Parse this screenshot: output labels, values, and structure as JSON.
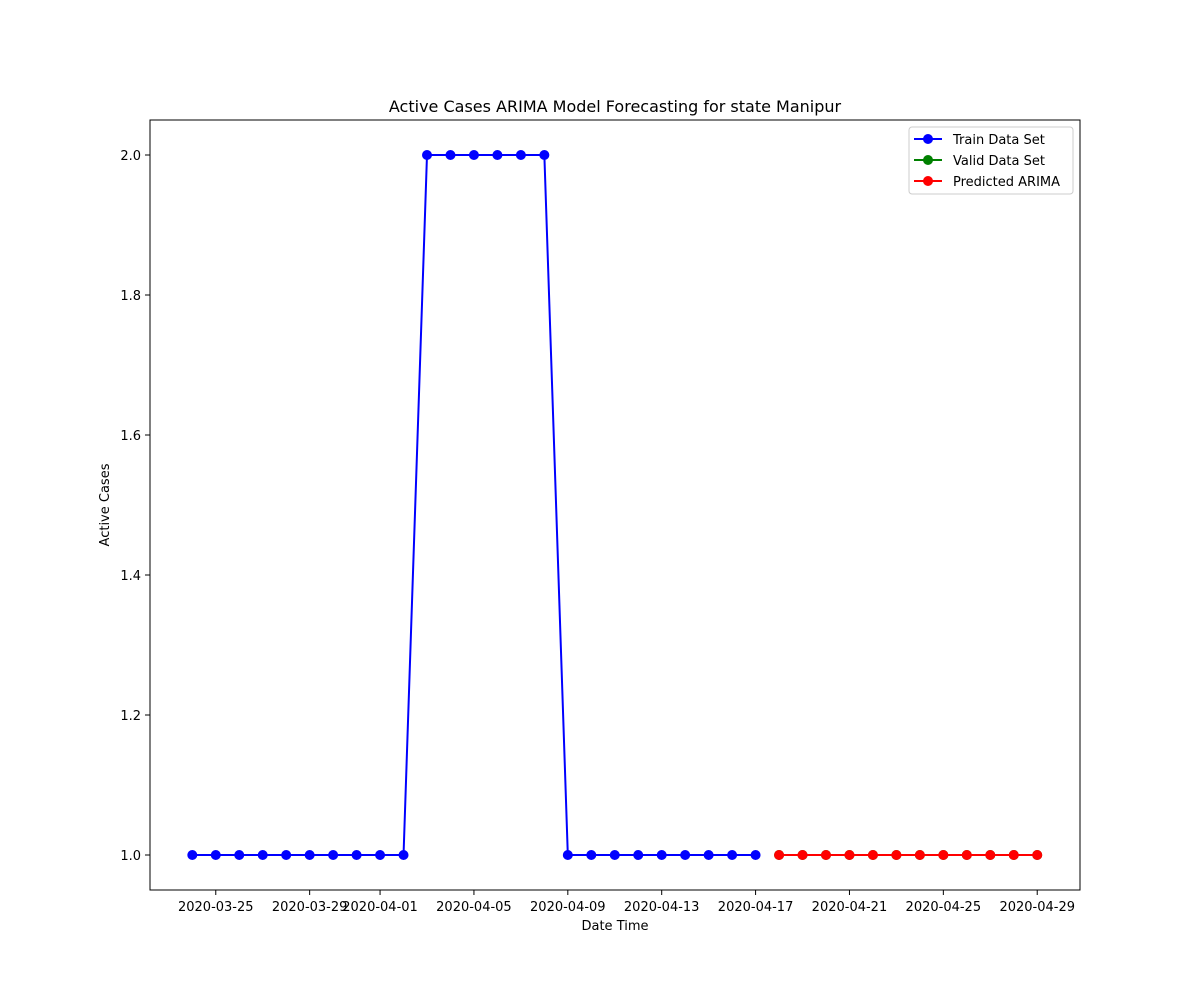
{
  "chart_data": {
    "type": "line",
    "title": "Active Cases ARIMA Model Forecasting for state Manipur",
    "xlabel": "Date Time",
    "ylabel": "Active Cases",
    "x_tick_labels": [
      "2020-03-25",
      "2020-03-29",
      "2020-04-01",
      "2020-04-05",
      "2020-04-09",
      "2020-04-13",
      "2020-04-17",
      "2020-04-21",
      "2020-04-25",
      "2020-04-29"
    ],
    "y_tick_labels": [
      "1.0",
      "1.2",
      "1.4",
      "1.6",
      "1.8",
      "2.0"
    ],
    "legend_position": "top-right",
    "grid": false,
    "series": [
      {
        "name": "Train Data Set",
        "color": "#0000ff",
        "x": [
          "2020-03-24",
          "2020-03-25",
          "2020-03-26",
          "2020-03-27",
          "2020-03-28",
          "2020-03-29",
          "2020-03-30",
          "2020-03-31",
          "2020-04-01",
          "2020-04-02",
          "2020-04-03",
          "2020-04-04",
          "2020-04-05",
          "2020-04-06",
          "2020-04-07",
          "2020-04-08",
          "2020-04-09",
          "2020-04-10",
          "2020-04-11",
          "2020-04-12",
          "2020-04-13",
          "2020-04-14",
          "2020-04-15",
          "2020-04-16",
          "2020-04-17"
        ],
        "values": [
          1,
          1,
          1,
          1,
          1,
          1,
          1,
          1,
          1,
          1,
          2,
          2,
          2,
          2,
          2,
          2,
          1,
          1,
          1,
          1,
          1,
          1,
          1,
          1,
          1
        ]
      },
      {
        "name": "Valid Data Set",
        "color": "#008000",
        "x": [
          "2020-04-18",
          "2020-04-19",
          "2020-04-20",
          "2020-04-21",
          "2020-04-22",
          "2020-04-23",
          "2020-04-24",
          "2020-04-25",
          "2020-04-26",
          "2020-04-27",
          "2020-04-28",
          "2020-04-29"
        ],
        "values": [
          1,
          1,
          1,
          1,
          1,
          1,
          1,
          1,
          1,
          1,
          1,
          1
        ]
      },
      {
        "name": "Predicted ARIMA",
        "color": "#ff0000",
        "x": [
          "2020-04-18",
          "2020-04-19",
          "2020-04-20",
          "2020-04-21",
          "2020-04-22",
          "2020-04-23",
          "2020-04-24",
          "2020-04-25",
          "2020-04-26",
          "2020-04-27",
          "2020-04-28",
          "2020-04-29"
        ],
        "values": [
          1,
          1,
          1,
          1,
          1,
          1,
          1,
          1,
          1,
          1,
          1,
          1
        ]
      }
    ]
  }
}
